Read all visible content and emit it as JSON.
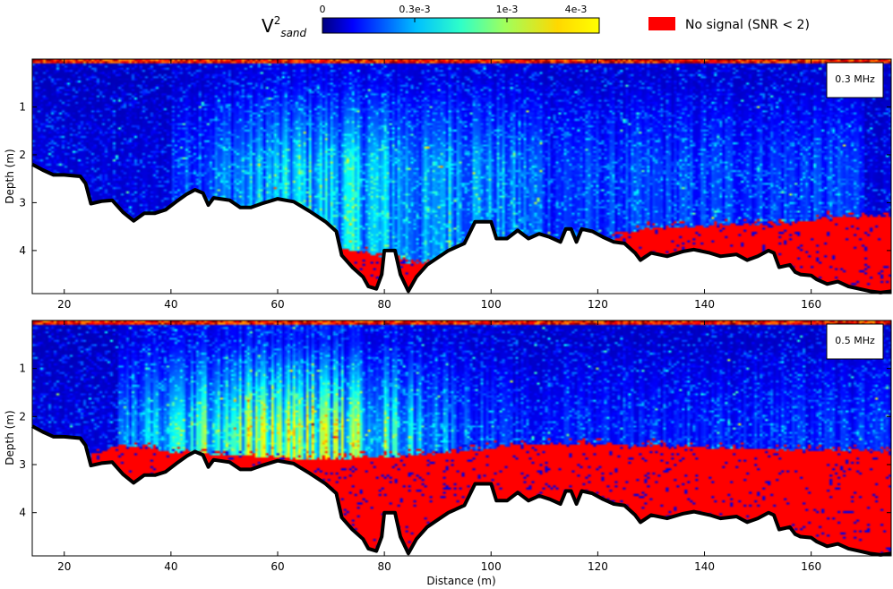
{
  "chart_data": {
    "type": "heatmap",
    "colorbar": {
      "label": "V",
      "superscript": "2",
      "subscript": "sand",
      "tick_labels": [
        "0",
        "0.3e-3",
        "1e-3",
        "4e-3"
      ],
      "colormap": "jet",
      "scale": "log"
    },
    "legend": {
      "label": "No signal (SNR < 2)",
      "color": "#ff0000"
    },
    "xlabel": "Distance (m)",
    "ylabel": "Depth (m)",
    "xlim": [
      14,
      175
    ],
    "ylim": [
      4.9,
      0
    ],
    "xticks": [
      20,
      40,
      60,
      80,
      100,
      120,
      140,
      160
    ],
    "yticks": [
      1,
      2,
      3,
      4
    ],
    "panels": [
      {
        "label": "0.3 MHz",
        "surface_band_depth": 0.07,
        "no_signal_onset_depth": [
          [
            14,
            9
          ],
          [
            66,
            9
          ],
          [
            70,
            3.9
          ],
          [
            74,
            4.0
          ],
          [
            78,
            4.1
          ],
          [
            82,
            4.2
          ],
          [
            86,
            4.3
          ],
          [
            100,
            4.2
          ],
          [
            110,
            4.1
          ],
          [
            120,
            3.9
          ],
          [
            128,
            3.55
          ],
          [
            140,
            3.5
          ],
          [
            155,
            3.45
          ],
          [
            165,
            3.3
          ],
          [
            175,
            3.3
          ]
        ]
      },
      {
        "label": "0.5 MHz",
        "surface_band_depth": 0.08,
        "no_signal_onset_depth": [
          [
            14,
            9
          ],
          [
            22,
            9
          ],
          [
            25,
            2.85
          ],
          [
            30,
            2.6
          ],
          [
            36,
            2.65
          ],
          [
            40,
            2.75
          ],
          [
            50,
            2.8
          ],
          [
            60,
            2.85
          ],
          [
            64,
            2.9
          ],
          [
            68,
            2.9
          ],
          [
            72,
            2.88
          ],
          [
            80,
            2.85
          ],
          [
            88,
            2.8
          ],
          [
            98,
            2.7
          ],
          [
            104,
            2.6
          ],
          [
            114,
            2.58
          ],
          [
            124,
            2.6
          ],
          [
            140,
            2.65
          ],
          [
            155,
            2.7
          ],
          [
            165,
            2.72
          ],
          [
            175,
            2.75
          ]
        ]
      }
    ],
    "bed_depth": [
      [
        14,
        2.2
      ],
      [
        16,
        2.32
      ],
      [
        18,
        2.42
      ],
      [
        20,
        2.42
      ],
      [
        22,
        2.44
      ],
      [
        23,
        2.45
      ],
      [
        24,
        2.6
      ],
      [
        25,
        3.02
      ],
      [
        27,
        2.97
      ],
      [
        29,
        2.95
      ],
      [
        31,
        3.2
      ],
      [
        33,
        3.38
      ],
      [
        35,
        3.22
      ],
      [
        37,
        3.22
      ],
      [
        39,
        3.15
      ],
      [
        41,
        2.98
      ],
      [
        43,
        2.82
      ],
      [
        44.5,
        2.73
      ],
      [
        46,
        2.8
      ],
      [
        47,
        3.05
      ],
      [
        48,
        2.9
      ],
      [
        51,
        2.95
      ],
      [
        53,
        3.1
      ],
      [
        55,
        3.1
      ],
      [
        57,
        3.02
      ],
      [
        60,
        2.92
      ],
      [
        63,
        2.98
      ],
      [
        66,
        3.18
      ],
      [
        69,
        3.4
      ],
      [
        71,
        3.6
      ],
      [
        72,
        4.1
      ],
      [
        74,
        4.35
      ],
      [
        76,
        4.55
      ],
      [
        77,
        4.75
      ],
      [
        78.5,
        4.8
      ],
      [
        79.5,
        4.5
      ],
      [
        80,
        4.0
      ],
      [
        82,
        4.0
      ],
      [
        83,
        4.5
      ],
      [
        84.5,
        4.85
      ],
      [
        86,
        4.55
      ],
      [
        88,
        4.3
      ],
      [
        90,
        4.15
      ],
      [
        92,
        4.0
      ],
      [
        95,
        3.85
      ],
      [
        97,
        3.4
      ],
      [
        100,
        3.4
      ],
      [
        101,
        3.75
      ],
      [
        103,
        3.75
      ],
      [
        105,
        3.58
      ],
      [
        107,
        3.75
      ],
      [
        109,
        3.65
      ],
      [
        111,
        3.72
      ],
      [
        113,
        3.82
      ],
      [
        114,
        3.55
      ],
      [
        115,
        3.55
      ],
      [
        116,
        3.82
      ],
      [
        117,
        3.55
      ],
      [
        119,
        3.6
      ],
      [
        121,
        3.72
      ],
      [
        123,
        3.82
      ],
      [
        125,
        3.85
      ],
      [
        127,
        4.05
      ],
      [
        128,
        4.2
      ],
      [
        130,
        4.05
      ],
      [
        133,
        4.12
      ],
      [
        136,
        4.02
      ],
      [
        138,
        3.98
      ],
      [
        141,
        4.05
      ],
      [
        143,
        4.12
      ],
      [
        146,
        4.08
      ],
      [
        148,
        4.2
      ],
      [
        150,
        4.12
      ],
      [
        152,
        4.0
      ],
      [
        153,
        4.05
      ],
      [
        154,
        4.35
      ],
      [
        156,
        4.3
      ],
      [
        157,
        4.45
      ],
      [
        158,
        4.5
      ],
      [
        160,
        4.52
      ],
      [
        161,
        4.6
      ],
      [
        163,
        4.7
      ],
      [
        165,
        4.65
      ],
      [
        167,
        4.75
      ],
      [
        169,
        4.8
      ],
      [
        171,
        4.85
      ],
      [
        173,
        4.88
      ],
      [
        175,
        4.85
      ]
    ]
  }
}
